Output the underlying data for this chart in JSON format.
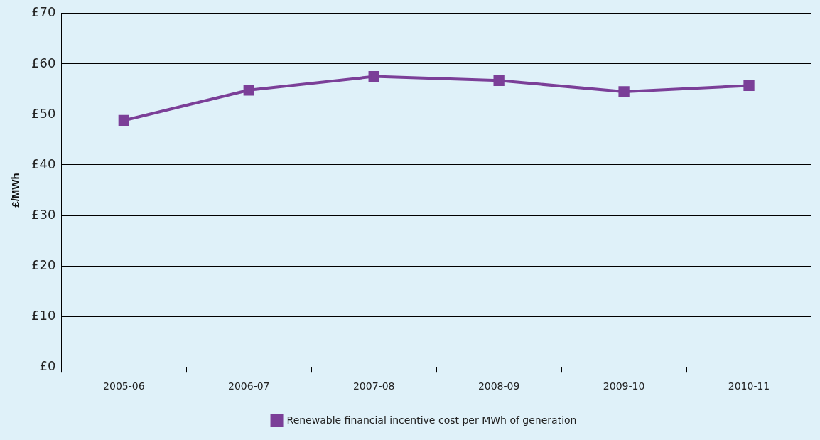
{
  "chart_data": {
    "type": "line",
    "ylabel": "£/MWh",
    "categories": [
      "2005-06",
      "2006-07",
      "2007-08",
      "2008-09",
      "2009-10",
      "2010-11"
    ],
    "series": [
      {
        "name": "Renewable financial incentive cost per MWh of generation",
        "color": "#7b3f98",
        "values": [
          48.8,
          54.8,
          57.5,
          56.7,
          54.5,
          55.7
        ]
      }
    ],
    "ylim": [
      0,
      70
    ],
    "yticks": [
      {
        "value": 0,
        "label": "£0"
      },
      {
        "value": 10,
        "label": "£10"
      },
      {
        "value": 20,
        "label": "£20"
      },
      {
        "value": 30,
        "label": "£30"
      },
      {
        "value": 40,
        "label": "£40"
      },
      {
        "value": 50,
        "label": "£50"
      },
      {
        "value": 60,
        "label": "£60"
      },
      {
        "value": 70,
        "label": "£70"
      }
    ],
    "grid": "y",
    "legend": "bottom",
    "marker": "square",
    "line_style": "solid"
  }
}
